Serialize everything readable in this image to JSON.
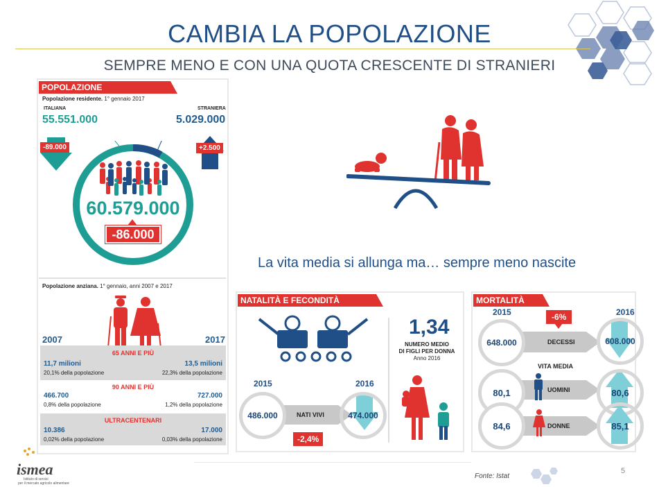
{
  "header": {
    "title": "CAMBIA LA POPOLAZIONE",
    "subtitle": "SEMPRE MENO E CON UNA QUOTA CRESCENTE DI STRANIERI"
  },
  "popolazione": {
    "section_title": "POPOLAZIONE",
    "caption_bold": "Popolazione residente.",
    "caption_rest": "1° gennaio 2017",
    "italiana_label": "ITALIANA",
    "italiana_value": "55.551.000",
    "italiana_change": "-89.000",
    "straniera_label": "STRANIERA",
    "straniera_value": "5.029.000",
    "straniera_change": "+2.500",
    "total": "60.579.000",
    "total_change": "-86.000"
  },
  "anziana": {
    "caption_bold": "Popolazione anziana.",
    "caption_rest": "1° gennaio, anni 2007 e 2017",
    "year_left": "2007",
    "year_right": "2017",
    "groups": [
      {
        "title": "65 ANNI E PIÙ",
        "left_value": "11,7 milioni",
        "left_pct": "20,1% della popolazione",
        "right_value": "13,5 milioni",
        "right_pct": "22,3% della popolazione"
      },
      {
        "title": "90 ANNI E PIÙ",
        "left_value": "466.700",
        "left_pct": "0,8% della popolazione",
        "right_value": "727.000",
        "right_pct": "1,2% della popolazione"
      },
      {
        "title": "ULTRACENTENARI",
        "left_value": "10.386",
        "left_pct": "0,02% della popolazione",
        "right_value": "17.000",
        "right_pct": "0,03% della popolazione"
      }
    ]
  },
  "tagline": "La vita media si allunga ma… sempre meno nascite",
  "natalita": {
    "section_title": "NATALITÀ E FECONDITÀ",
    "year_left": "2015",
    "year_right": "2016",
    "left_value": "486.000",
    "arrow_label": "NATI VIVI",
    "right_value": "474.000",
    "change": "-2,4%",
    "fert_value": "1,34",
    "fert_line1": "NUMERO MEDIO",
    "fert_line2": "DI FIGLI PER DONNA",
    "fert_year": "Anno 2016"
  },
  "mortalita": {
    "section_title": "MORTALITÀ",
    "year_left": "2015",
    "year_right": "2016",
    "change": "-6%",
    "decessi_left": "648.000",
    "decessi_label": "DECESSI",
    "decessi_right": "608.000",
    "vita_media_label": "VITA MEDIA",
    "uomini_left": "80,1",
    "uomini_label": "UOMINI",
    "uomini_right": "80,6",
    "donne_left": "84,6",
    "donne_label": "DONNE",
    "donne_right": "85,1"
  },
  "footer": {
    "logo_text": "ismea",
    "logo_sub1": "Istituto di servizi",
    "logo_sub2": "per il mercato agricolo alimentare",
    "source": "Fonte: Istat",
    "page_number": "5"
  },
  "colors": {
    "navy": "#1f4f86",
    "teal": "#1e9d94",
    "red": "#e0322e",
    "gray": "#d9d9d9"
  }
}
